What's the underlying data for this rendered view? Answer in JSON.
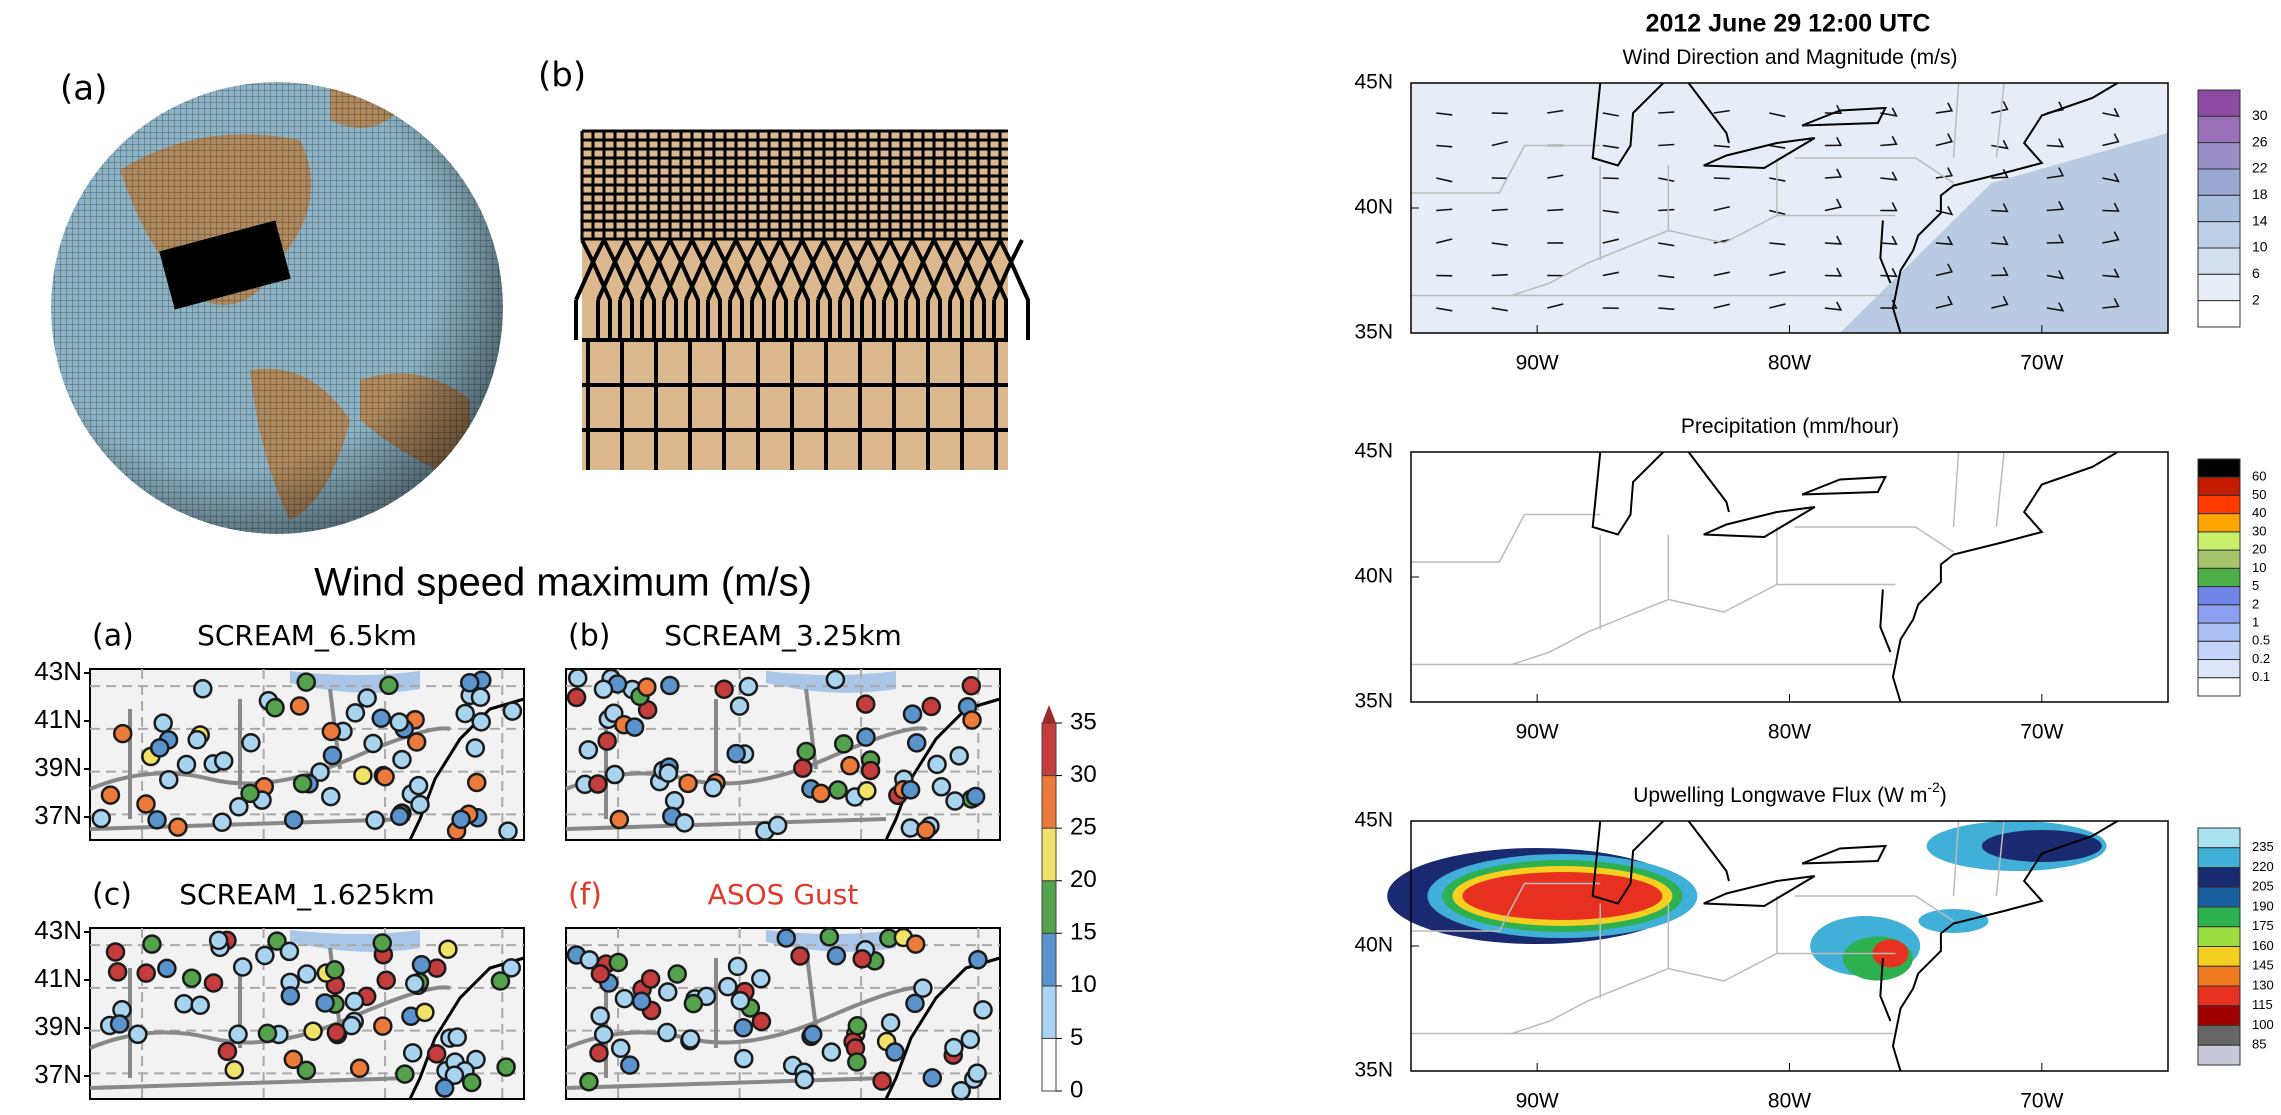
{
  "globe_panel": {
    "label": "(a)"
  },
  "mesh_panel": {
    "label": "(b)"
  },
  "wind_max": {
    "title": "Wind speed maximum (m/s)",
    "lat_ticks": [
      "43N",
      "41N",
      "39N",
      "37N"
    ],
    "panels": [
      {
        "label": "(a)",
        "name": "SCREAM_6.5km"
      },
      {
        "label": "(b)",
        "name": "SCREAM_3.25km"
      },
      {
        "label": "(c)",
        "name": "SCREAM_1.625km"
      },
      {
        "label": "(f)",
        "name": "ASOS Gust"
      }
    ],
    "colorbar": {
      "ticks": [
        0,
        5,
        10,
        15,
        20,
        25,
        30,
        35
      ],
      "lim": [
        0,
        35
      ]
    }
  },
  "forecast": {
    "title": "2012 June 29 12:00 UTC",
    "lat_ticks": [
      "45N",
      "40N",
      "35N"
    ],
    "lon_ticks": [
      "90W",
      "80W",
      "70W"
    ],
    "panels": [
      {
        "title": "Wind Direction and Magnitude (m/s)",
        "colorbar": [
          30,
          26,
          22,
          18,
          14,
          10,
          6,
          2
        ]
      },
      {
        "title": "Precipitation (mm/hour)",
        "colorbar": [
          60,
          50,
          40,
          30,
          20,
          10,
          5,
          2,
          1,
          0.5,
          0.2,
          0.1
        ]
      },
      {
        "title": "Upwelling Longwave Flux (W m",
        "title_sup": "-2",
        "title_end": ")",
        "colorbar": [
          235,
          220,
          205,
          190,
          175,
          160,
          145,
          130,
          115,
          100,
          85
        ]
      }
    ]
  }
}
